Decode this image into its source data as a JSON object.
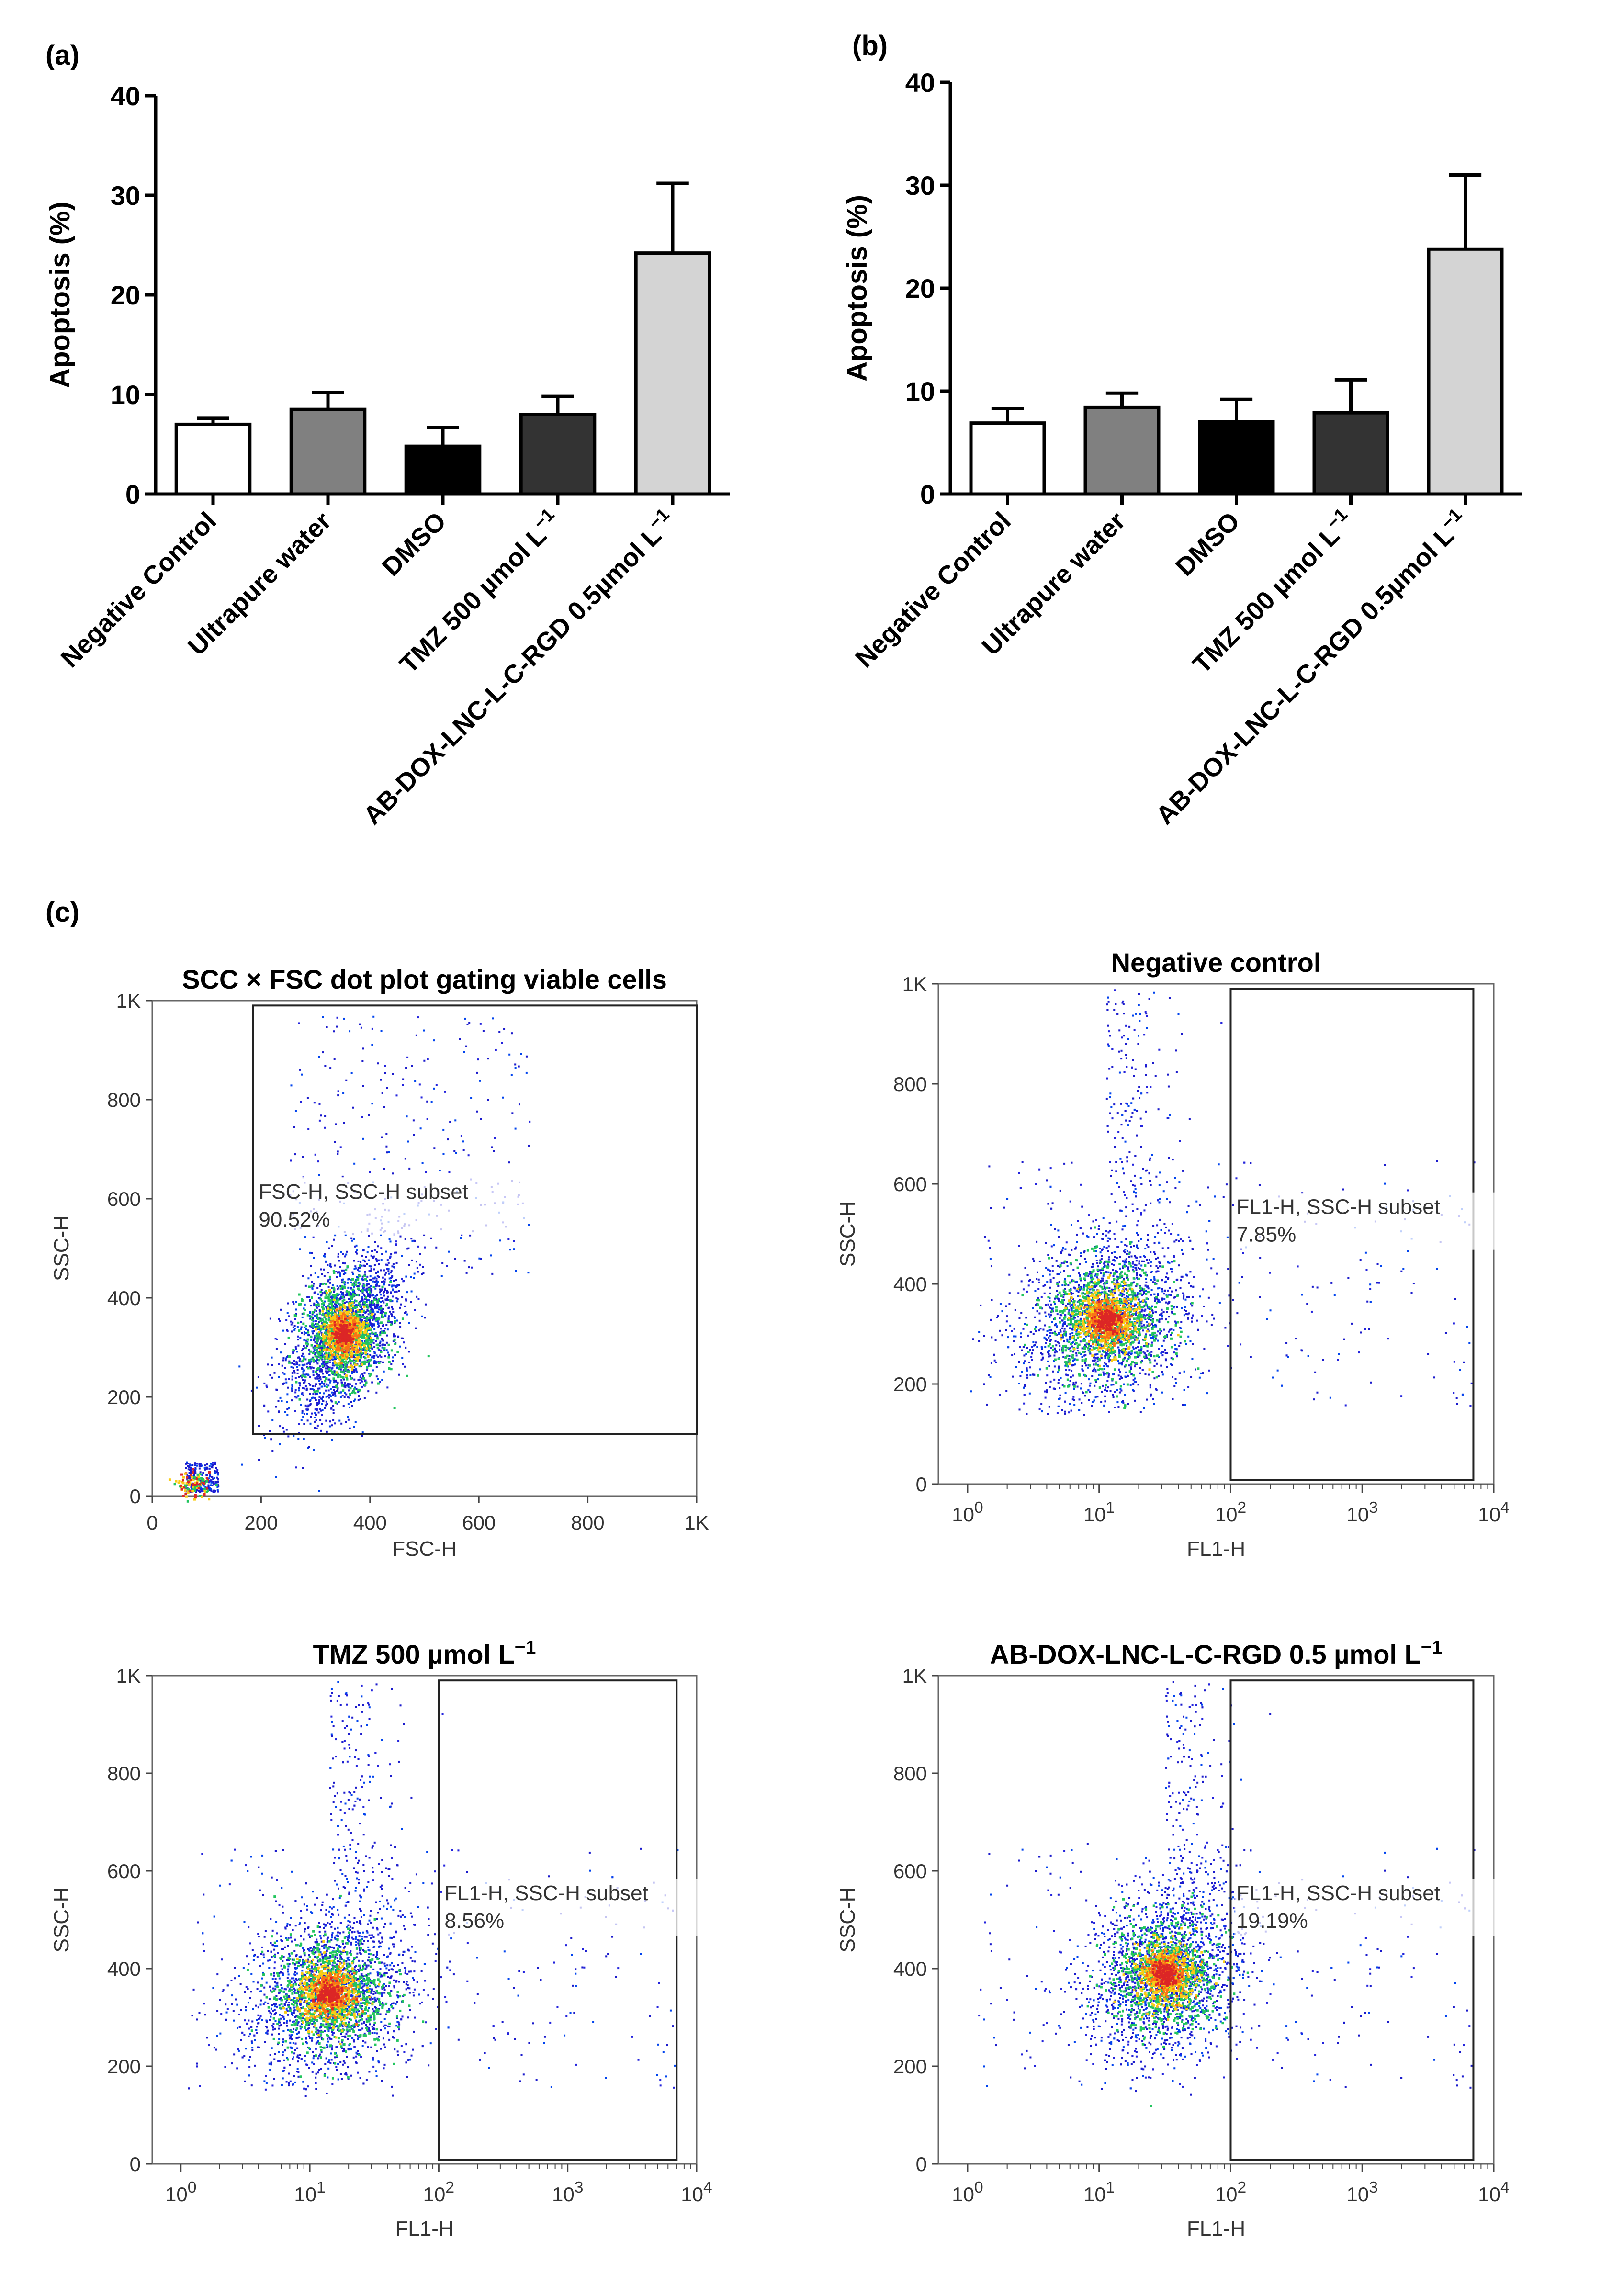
{
  "labels": {
    "a": "(a)",
    "b": "(b)",
    "c": "(c)"
  },
  "colors": {
    "negative_control": "#ffffff",
    "ultrapure_water": "#808080",
    "dmso": "#000000",
    "tmz": "#333333",
    "ab_dox": "#d4d4d4"
  },
  "chart_data": [
    {
      "id": "a",
      "type": "bar",
      "title": "",
      "xlabel": "",
      "ylabel": "Apoptosis (%)",
      "ylim": [
        0,
        40
      ],
      "yticks": [
        0,
        10,
        20,
        30,
        40
      ],
      "categories": [
        "Negative Control",
        "Ultrapure water",
        "DMSO",
        "TMZ 500 µmol L⁻¹",
        "AB-DOX-LNC-L-C-RGD 0.5µmol L⁻¹"
      ],
      "values": [
        7.0,
        8.5,
        4.8,
        8.0,
        24.2
      ],
      "errors": [
        0.6,
        1.7,
        1.9,
        1.8,
        7.0
      ]
    },
    {
      "id": "b",
      "type": "bar",
      "title": "",
      "xlabel": "",
      "ylabel": "Apoptosis (%)",
      "ylim": [
        0,
        40
      ],
      "yticks": [
        0,
        10,
        20,
        30,
        40
      ],
      "categories": [
        "Negative Control",
        "Ultrapure water",
        "DMSO",
        "TMZ 500 µmol L⁻¹",
        "AB-DOX-LNC-L-C-RGD 0.5µmol L⁻¹"
      ],
      "values": [
        6.9,
        8.4,
        7.0,
        7.9,
        23.8
      ],
      "errors": [
        1.4,
        1.4,
        2.2,
        3.2,
        7.2
      ]
    },
    {
      "id": "c1",
      "type": "scatter",
      "title": "SCC × FSC dot plot gating viable cells",
      "xlabel": "FSC-H",
      "ylabel": "SSC-H",
      "xscale": "linear",
      "xlim": [
        0,
        1000
      ],
      "ylim": [
        0,
        1000
      ],
      "xticks": [
        "0",
        "200",
        "400",
        "600",
        "800",
        "1K"
      ],
      "yticks": [
        "0",
        "200",
        "400",
        "600",
        "800",
        "1K"
      ],
      "gate_label": "FSC-H, SSC-H subset",
      "gate_percent": "90.52%",
      "gate": {
        "x0": 185,
        "x1": 1000,
        "y0": 125,
        "y1": 1000
      },
      "population": {
        "center_x": 350,
        "center_y": 330,
        "sd_x": 55,
        "sd_y": 75
      }
    },
    {
      "id": "c2",
      "type": "scatter",
      "title": "Negative control",
      "xlabel": "FL1-H",
      "ylabel": "SSC-H",
      "xscale": "log",
      "xlim": [
        0.6,
        10000
      ],
      "ylim": [
        0,
        1000
      ],
      "xticks": [
        "10^0",
        "10^1",
        "10^2",
        "10^3",
        "10^4"
      ],
      "yticks": [
        "0",
        "200",
        "400",
        "600",
        "800",
        "1K"
      ],
      "gate_label": "FL1-H, SSC-H subset",
      "gate_percent": "7.85%",
      "gate": {
        "x0": 100,
        "x1": 7000,
        "y0": 0,
        "y1": 1000
      },
      "population": {
        "center_log_x": 1.05,
        "center_y": 330,
        "sd_log_x": 0.33,
        "sd_y": 85
      }
    },
    {
      "id": "c3",
      "type": "scatter",
      "title": "TMZ 500 µmol L⁻¹",
      "xlabel": "FL1-H",
      "ylabel": "SSC-H",
      "xscale": "log",
      "xlim": [
        0.6,
        10000
      ],
      "ylim": [
        0,
        1000
      ],
      "xticks": [
        "10^0",
        "10^1",
        "10^2",
        "10^3",
        "10^4"
      ],
      "yticks": [
        "0",
        "200",
        "400",
        "600",
        "800",
        "1K"
      ],
      "gate_label": "FL1-H, SSC-H subset",
      "gate_percent": "8.56%",
      "gate": {
        "x0": 100,
        "x1": 7000,
        "y0": 0,
        "y1": 1000
      },
      "population": {
        "center_log_x": 1.15,
        "center_y": 350,
        "sd_log_x": 0.33,
        "sd_y": 85
      }
    },
    {
      "id": "c4",
      "type": "scatter",
      "title": "AB-DOX-LNC-L-C-RGD 0.5 µmol L⁻¹",
      "xlabel": "FL1-H",
      "ylabel": "SSC-H",
      "xscale": "log",
      "xlim": [
        0.6,
        10000
      ],
      "ylim": [
        0,
        1000
      ],
      "xticks": [
        "10^0",
        "10^1",
        "10^2",
        "10^3",
        "10^4"
      ],
      "yticks": [
        "0",
        "200",
        "400",
        "600",
        "800",
        "1K"
      ],
      "gate_label": "FL1-H, SSC-H subset",
      "gate_percent": "19.19%",
      "gate": {
        "x0": 100,
        "x1": 7000,
        "y0": 0,
        "y1": 1000
      },
      "population": {
        "center_log_x": 1.5,
        "center_y": 390,
        "sd_log_x": 0.3,
        "sd_y": 85
      }
    }
  ]
}
